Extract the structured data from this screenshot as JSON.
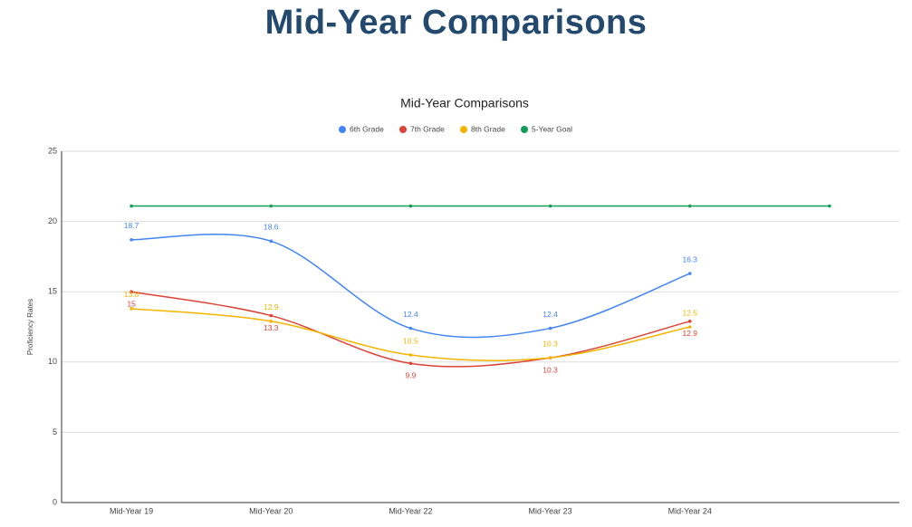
{
  "header": {
    "title": "Mid-Year Comparisons"
  },
  "chart_data": {
    "type": "line",
    "title": "Mid-Year Comparisons",
    "categories": [
      "Mid-Year 19",
      "Mid-Year 20",
      "Mid-Year 22",
      "Mid-Year 23",
      "Mid-Year 24",
      null
    ],
    "series": [
      {
        "name": "6th Grade",
        "color": "#4285f4",
        "values": [
          18.7,
          18.6,
          12.4,
          12.4,
          16.3,
          null
        ]
      },
      {
        "name": "7th Grade",
        "color": "#db4437",
        "values": [
          15,
          13.3,
          9.9,
          10.3,
          12.9,
          null
        ]
      },
      {
        "name": "8th Grade",
        "color": "#f4b400",
        "values": [
          13.8,
          12.9,
          10.5,
          10.3,
          12.5,
          null
        ]
      },
      {
        "name": "5-Year Goal",
        "color": "#0f9d58",
        "values": [
          21.1,
          21.1,
          21.1,
          21.1,
          21.1,
          21.1
        ]
      }
    ],
    "ylabel": "Proficiency Rates",
    "ylim": [
      0,
      25
    ],
    "yticks": [
      0,
      5,
      10,
      15,
      20,
      25
    ],
    "grid": true,
    "legend": "top",
    "smooth": true
  }
}
